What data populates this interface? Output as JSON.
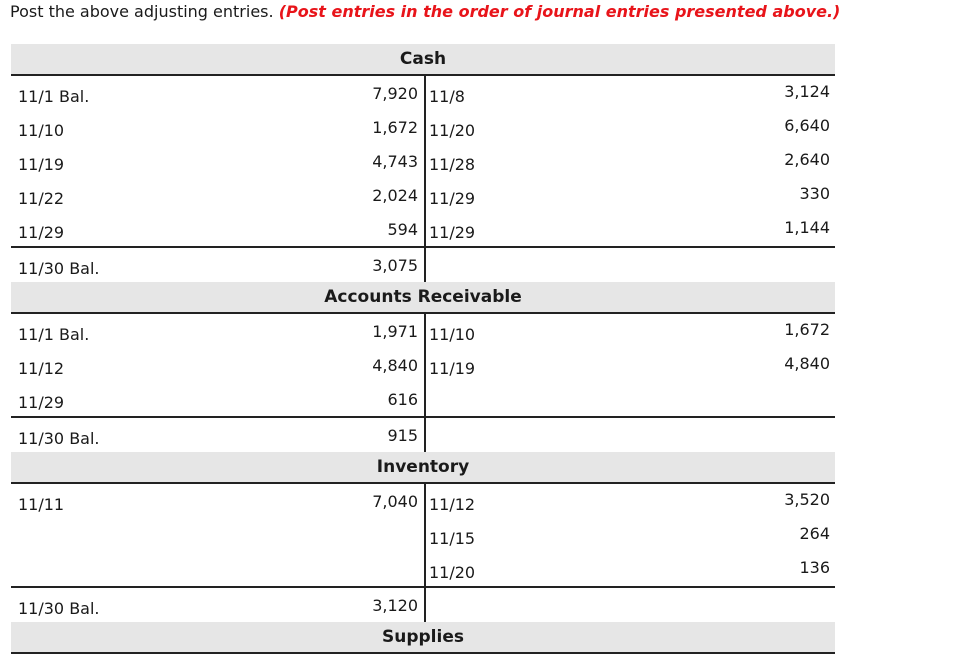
{
  "instruction": {
    "prefix": "Post the above adjusting entries.",
    "emphasis": "(Post entries in the order of journal entries presented above.)"
  },
  "accounts": [
    {
      "name": "Cash",
      "rows": [
        {
          "left_date": "11/1 Bal.",
          "left_amount": "7,920",
          "right_date": "11/8",
          "right_amount": "3,124"
        },
        {
          "left_date": "11/10",
          "left_amount": "1,672",
          "right_date": "11/20",
          "right_amount": "6,640"
        },
        {
          "left_date": "11/19",
          "left_amount": "4,743",
          "right_date": "11/28",
          "right_amount": "2,640"
        },
        {
          "left_date": "11/22",
          "left_amount": "2,024",
          "right_date": "11/29",
          "right_amount": "330"
        },
        {
          "left_date": "11/29",
          "left_amount": "594",
          "right_date": "11/29",
          "right_amount": "1,144"
        }
      ],
      "balance": {
        "label": "11/30 Bal.",
        "amount": "3,075"
      }
    },
    {
      "name": "Accounts Receivable",
      "rows": [
        {
          "left_date": "11/1 Bal.",
          "left_amount": "1,971",
          "right_date": "11/10",
          "right_amount": "1,672"
        },
        {
          "left_date": "11/12",
          "left_amount": "4,840",
          "right_date": "11/19",
          "right_amount": "4,840"
        },
        {
          "left_date": "11/29",
          "left_amount": "616",
          "right_date": "",
          "right_amount": ""
        }
      ],
      "balance": {
        "label": "11/30 Bal.",
        "amount": "915"
      }
    },
    {
      "name": "Inventory",
      "rows": [
        {
          "left_date": "11/11",
          "left_amount": "7,040",
          "right_date": "11/12",
          "right_amount": "3,520"
        },
        {
          "left_date": "",
          "left_amount": "",
          "right_date": "11/15",
          "right_amount": "264"
        },
        {
          "left_date": "",
          "left_amount": "",
          "right_date": "11/20",
          "right_amount": "136"
        }
      ],
      "balance": {
        "label": "11/30 Bal.",
        "amount": "3,120"
      }
    },
    {
      "name": "Supplies",
      "rows": [],
      "balance": null
    }
  ]
}
